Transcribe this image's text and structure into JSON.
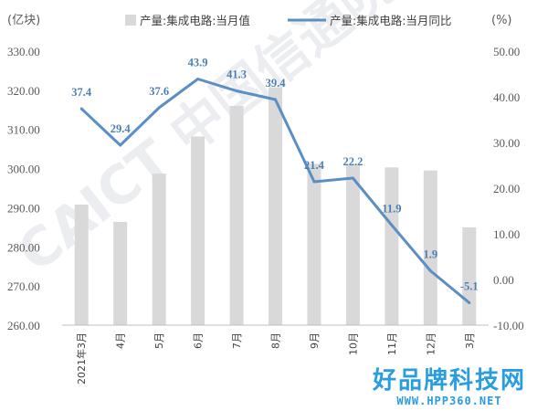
{
  "chart_data": {
    "type": "bar+line",
    "categories": [
      "2021年3月",
      "4月",
      "5月",
      "6月",
      "7月",
      "8月",
      "9月",
      "10月",
      "11月",
      "12月",
      "3月"
    ],
    "left_axis": {
      "unit": "(亿块)",
      "ylim": [
        260,
        330
      ],
      "ticks": [
        "260.00",
        "270.00",
        "280.00",
        "290.00",
        "300.00",
        "310.00",
        "320.00",
        "330.00"
      ]
    },
    "right_axis": {
      "unit": "(%)",
      "ylim": [
        -10,
        50
      ],
      "ticks": [
        "-10.00",
        "0.00",
        "10.00",
        "20.00",
        "30.00",
        "40.00",
        "50.00"
      ]
    },
    "series": [
      {
        "name": "产量:集成电路:当月值",
        "type": "bar",
        "axis": "left",
        "color": "#d9d9d9",
        "values": [
          290.8,
          286.4,
          298.7,
          308.2,
          316.0,
          320.8,
          301.2,
          301.0,
          300.3,
          299.5,
          285.0
        ]
      },
      {
        "name": "产量:集成电路:当月同比",
        "type": "line",
        "axis": "right",
        "color": "#5b8fc4",
        "values": [
          37.4,
          29.4,
          37.6,
          43.9,
          41.3,
          39.4,
          21.4,
          22.2,
          11.9,
          1.9,
          -5.1
        ],
        "labels": [
          "37.4",
          "29.4",
          "37.6",
          "43.9",
          "41.3",
          "39.4",
          "21.4",
          "22.2",
          "11.9",
          "1.9",
          "-5.1"
        ]
      }
    ],
    "grid": false,
    "legend": "top"
  },
  "watermark": {
    "text": "CAICT 中国信通院"
  },
  "brand": {
    "name": "好品牌科技网",
    "url": "WWW.HPP360.NET",
    "color": "#2a9de0"
  }
}
